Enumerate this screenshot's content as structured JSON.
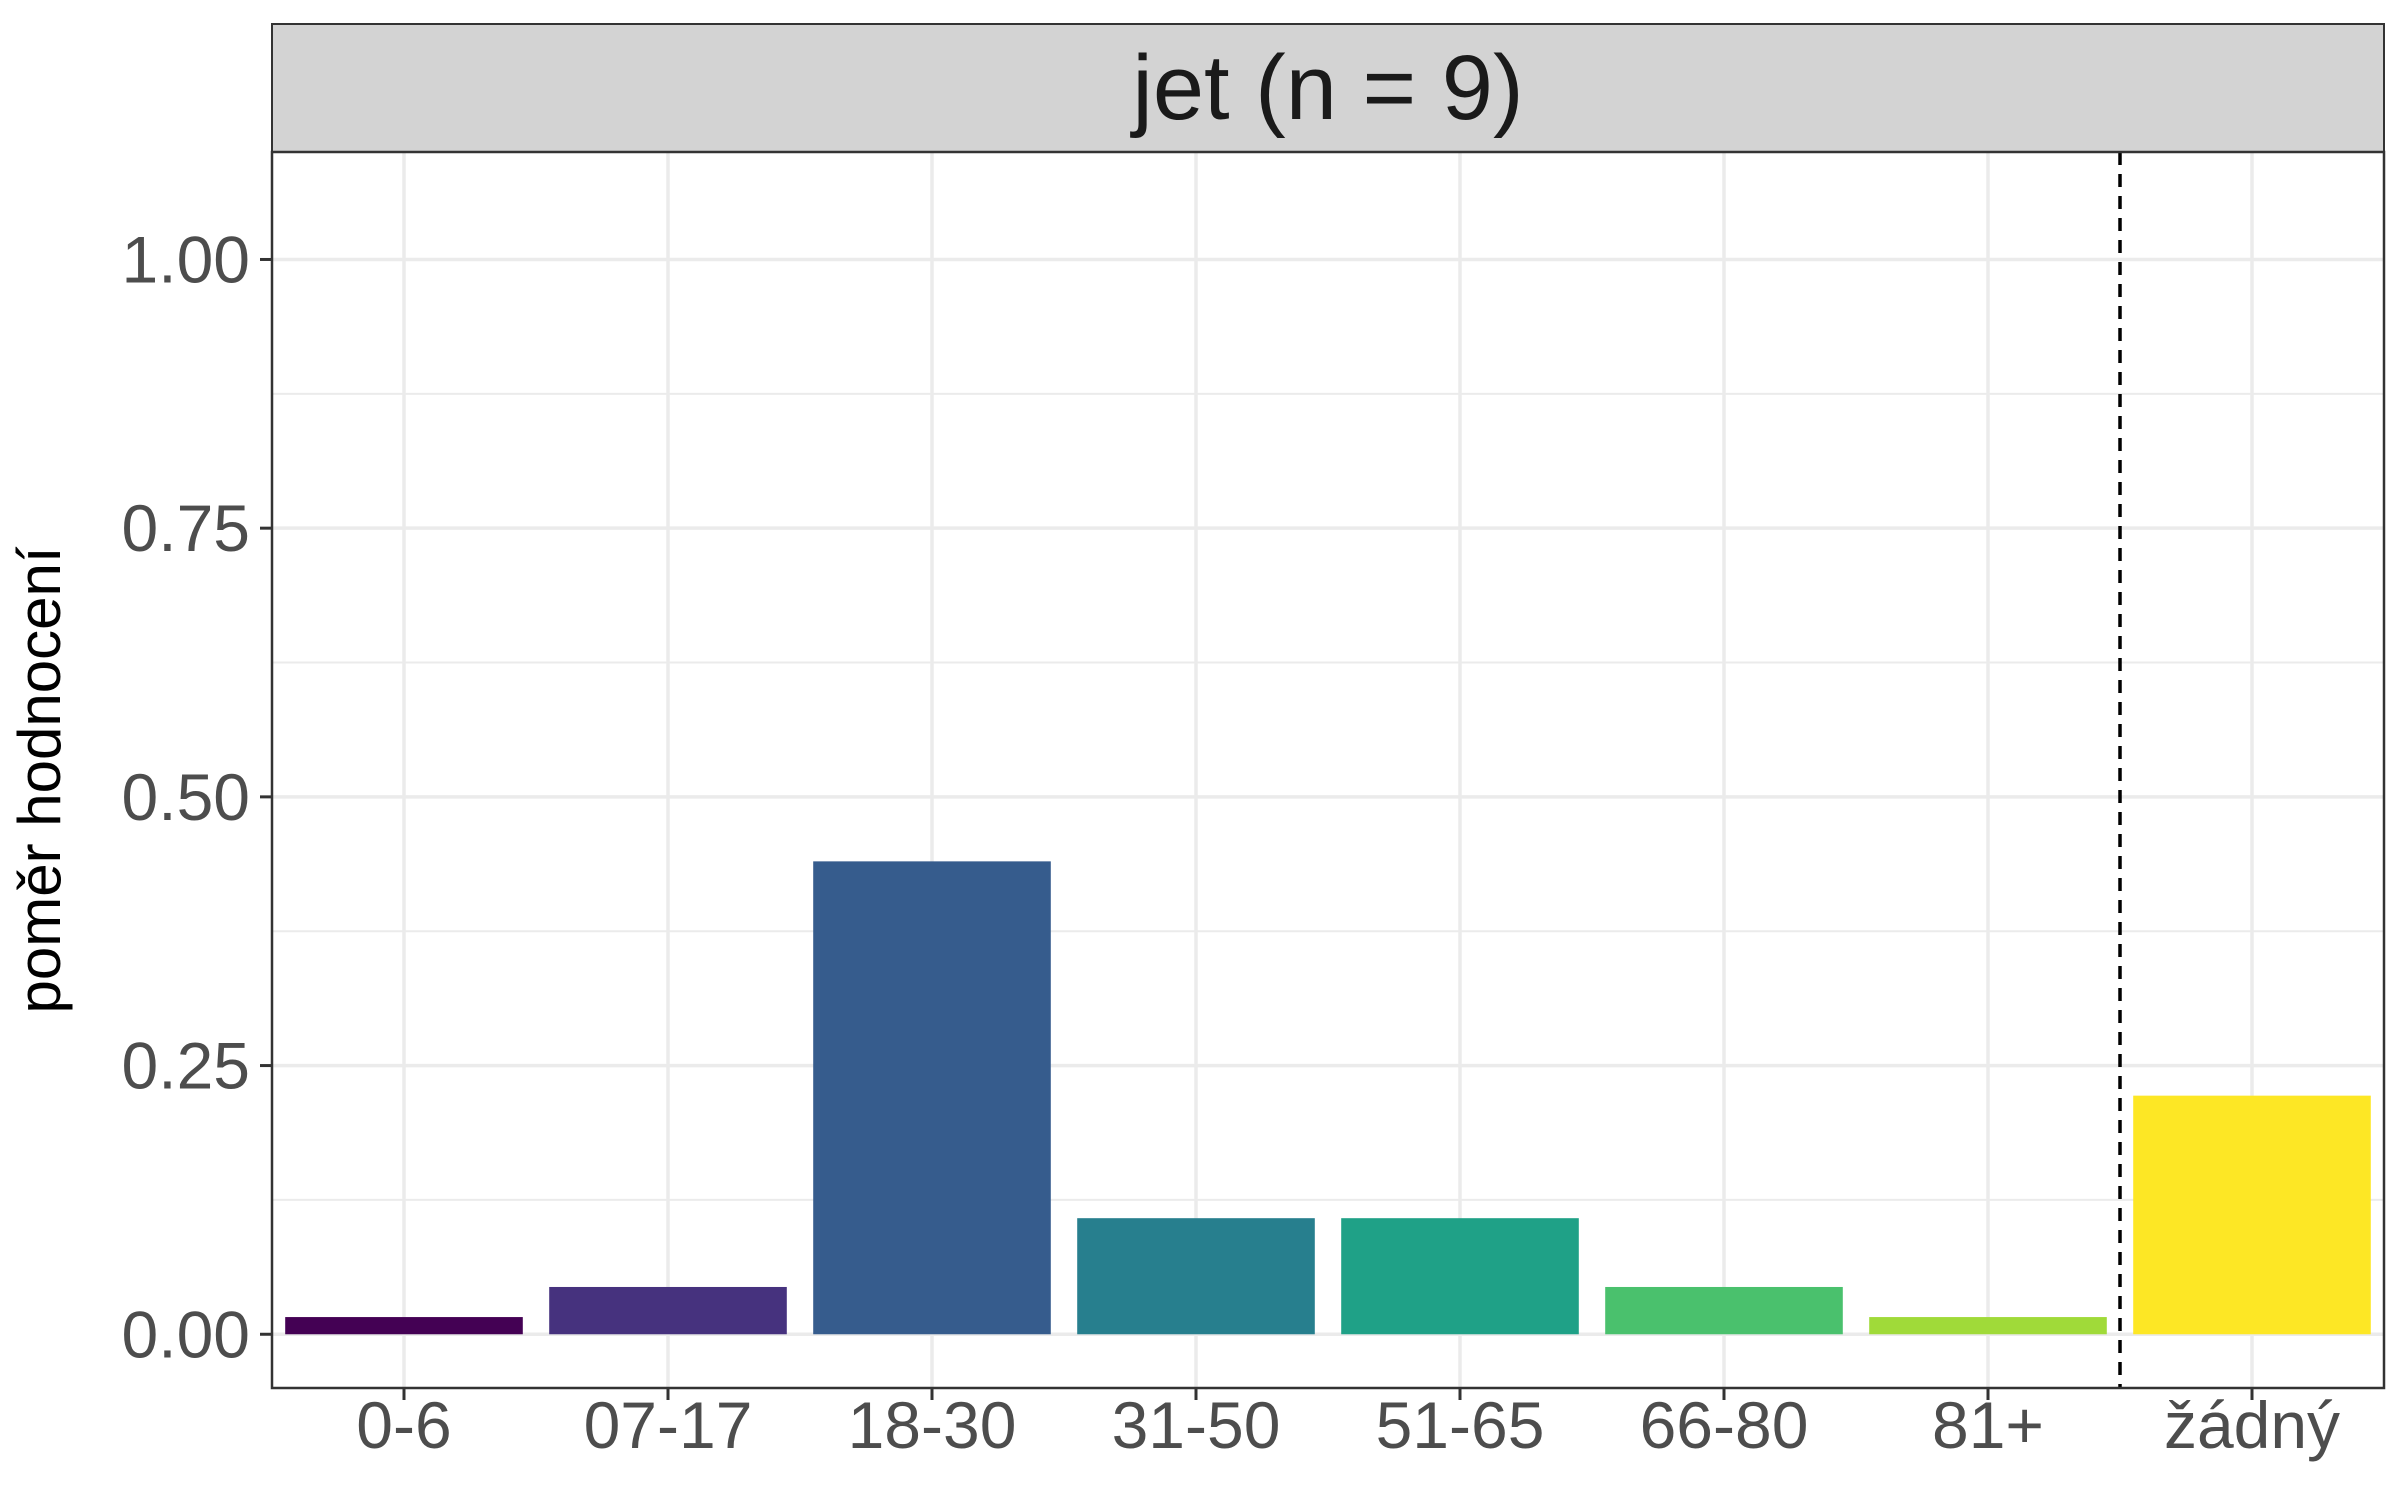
{
  "chart_data": {
    "type": "bar",
    "title": "jet (n = 9)",
    "xlabel": "",
    "ylabel": "poměr hodnocení",
    "categories": [
      "0-6",
      "07-17",
      "18-30",
      "31-50",
      "51-65",
      "66-80",
      "81+",
      "žádný"
    ],
    "values": [
      0.016,
      0.044,
      0.44,
      0.108,
      0.108,
      0.044,
      0.016,
      0.222
    ],
    "colors": [
      "#440154",
      "#46327e",
      "#365c8d",
      "#277f8e",
      "#1fa187",
      "#4ac16d",
      "#a0da39",
      "#fde725"
    ],
    "ylim": [
      -0.05,
      1.1
    ],
    "yticks": [
      0.0,
      0.25,
      0.5,
      0.75,
      1.0
    ],
    "ytick_labels": [
      "0.00",
      "0.25",
      "0.50",
      "0.75",
      "1.00"
    ],
    "reference_line": {
      "between_categories": [
        "81+",
        "žádný"
      ],
      "style": "dashed"
    },
    "grid": true,
    "legend": "none"
  }
}
